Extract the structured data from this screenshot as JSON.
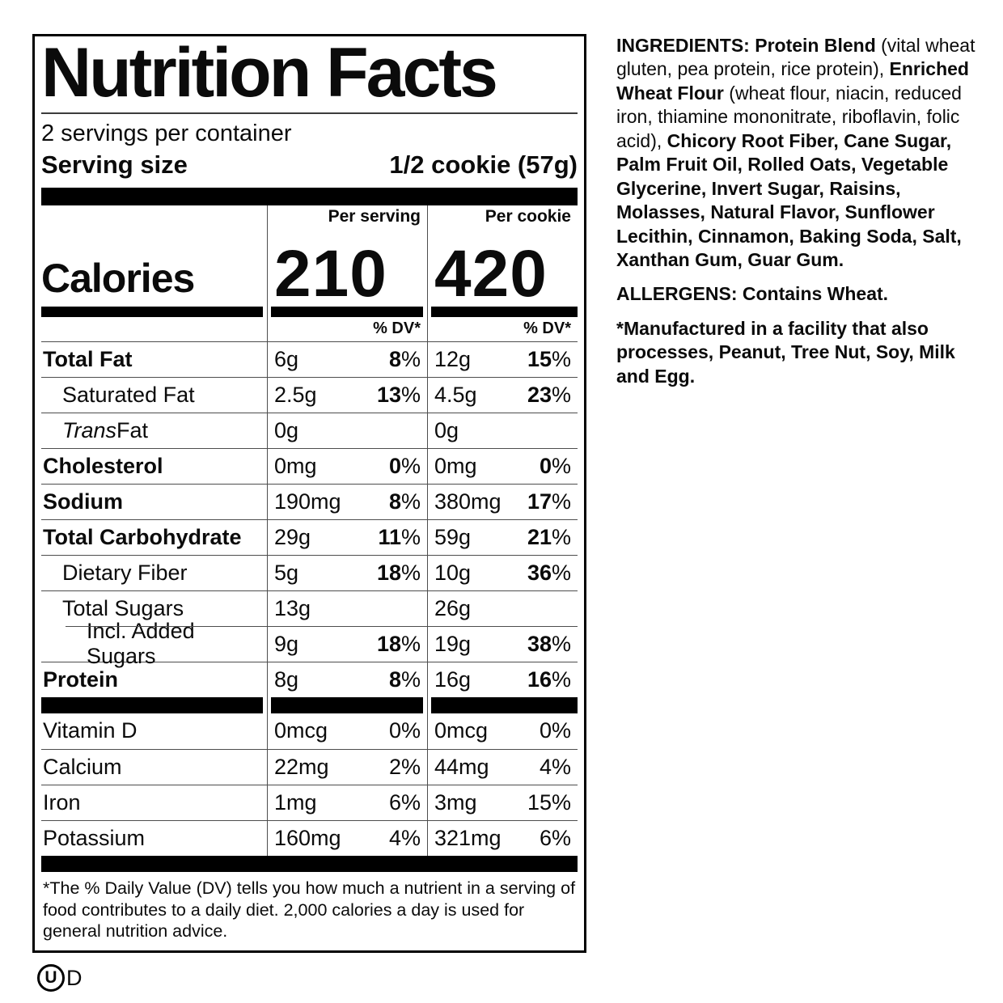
{
  "label": {
    "title": "Nutrition Facts",
    "servings_per_container": "2 servings per container",
    "serving_size_label": "Serving size",
    "serving_size_value": "1/2 cookie (57g)",
    "calories": {
      "word": "Calories",
      "columns": [
        {
          "header": "Per serving",
          "value": "210"
        },
        {
          "header": "Per cookie",
          "value": "420"
        }
      ],
      "dv_header": "% DV*"
    },
    "nutrients": [
      {
        "name": "Total Fat",
        "bold": true,
        "indent": 0,
        "per_serving": {
          "amount": "6g",
          "dv": "8"
        },
        "per_cookie": {
          "amount": "12g",
          "dv": "15"
        }
      },
      {
        "name": "Saturated Fat",
        "bold": false,
        "indent": 1,
        "per_serving": {
          "amount": "2.5g",
          "dv": "13"
        },
        "per_cookie": {
          "amount": "4.5g",
          "dv": "23"
        }
      },
      {
        "name_italic": "Trans",
        "name": " Fat",
        "bold": false,
        "indent": 1,
        "per_serving": {
          "amount": "0g",
          "dv": null
        },
        "per_cookie": {
          "amount": "0g",
          "dv": null
        }
      },
      {
        "name": "Cholesterol",
        "bold": true,
        "indent": 0,
        "per_serving": {
          "amount": "0mg",
          "dv": "0"
        },
        "per_cookie": {
          "amount": "0mg",
          "dv": "0"
        }
      },
      {
        "name": "Sodium",
        "bold": true,
        "indent": 0,
        "per_serving": {
          "amount": "190mg",
          "dv": "8"
        },
        "per_cookie": {
          "amount": "380mg",
          "dv": "17"
        }
      },
      {
        "name": "Total Carbohydrate",
        "bold": true,
        "indent": 0,
        "per_serving": {
          "amount": "29g",
          "dv": "11"
        },
        "per_cookie": {
          "amount": "59g",
          "dv": "21"
        }
      },
      {
        "name": "Dietary Fiber",
        "bold": false,
        "indent": 1,
        "per_serving": {
          "amount": "5g",
          "dv": "18"
        },
        "per_cookie": {
          "amount": "10g",
          "dv": "36"
        }
      },
      {
        "name": "Total Sugars",
        "bold": false,
        "indent": 1,
        "per_serving": {
          "amount": "13g",
          "dv": null
        },
        "per_cookie": {
          "amount": "26g",
          "dv": null
        }
      },
      {
        "name": "Incl. Added Sugars",
        "bold": false,
        "indent": 2,
        "indent_rule": true,
        "per_serving": {
          "amount": "9g",
          "dv": "18"
        },
        "per_cookie": {
          "amount": "19g",
          "dv": "38"
        }
      },
      {
        "name": "Protein",
        "bold": true,
        "indent": 0,
        "per_serving": {
          "amount": "8g",
          "dv": "8"
        },
        "per_cookie": {
          "amount": "16g",
          "dv": "16"
        }
      }
    ],
    "vitamins": [
      {
        "name": "Vitamin D",
        "per_serving": {
          "amount": "0mcg",
          "dv": "0"
        },
        "per_cookie": {
          "amount": "0mcg",
          "dv": "0"
        }
      },
      {
        "name": "Calcium",
        "per_serving": {
          "amount": "22mg",
          "dv": "2"
        },
        "per_cookie": {
          "amount": "44mg",
          "dv": "4"
        }
      },
      {
        "name": "Iron",
        "per_serving": {
          "amount": "1mg",
          "dv": "6"
        },
        "per_cookie": {
          "amount": "3mg",
          "dv": "15"
        }
      },
      {
        "name": "Potassium",
        "per_serving": {
          "amount": "160mg",
          "dv": "4"
        },
        "per_cookie": {
          "amount": "321mg",
          "dv": "6"
        }
      }
    ],
    "footnote": "*The % Daily Value (DV) tells you how much a nutrient in a serving of food contributes to a daily diet. 2,000 calories a day is used for general nutrition advice."
  },
  "kosher": {
    "symbol_letter": "U",
    "suffix": "D"
  },
  "right_panel": {
    "ingredients_segments": [
      {
        "t": "INGREDIENTS: Protein Blend",
        "b": true
      },
      {
        "t": " (vital wheat gluten, pea protein, rice protein), ",
        "b": false
      },
      {
        "t": "Enriched Wheat Flour",
        "b": true
      },
      {
        "t": " (wheat flour, niacin, reduced iron, thiamine mononitrate, riboflavin, folic acid), ",
        "b": false
      },
      {
        "t": "Chicory Root Fiber, Cane Sugar, Palm Fruit Oil, Rolled Oats, Vegetable Glycerine, Invert Sugar, Raisins, Molasses, Natural Flavor, Sunflower Lecithin, Cinnamon, Baking Soda, Salt, Xanthan Gum, Guar Gum.",
        "b": true
      }
    ],
    "allergens_segments": [
      {
        "t": "ALLERGENS: Contains Wheat.",
        "b": true
      }
    ],
    "facility_segments": [
      {
        "t": "*Manufactured in a facility that also processes, Peanut, Tree Nut, Soy, Milk and Egg.",
        "b": true
      }
    ]
  },
  "colors": {
    "text": "#0b0b0b",
    "background": "#ffffff",
    "rule": "#4d4d4d"
  }
}
